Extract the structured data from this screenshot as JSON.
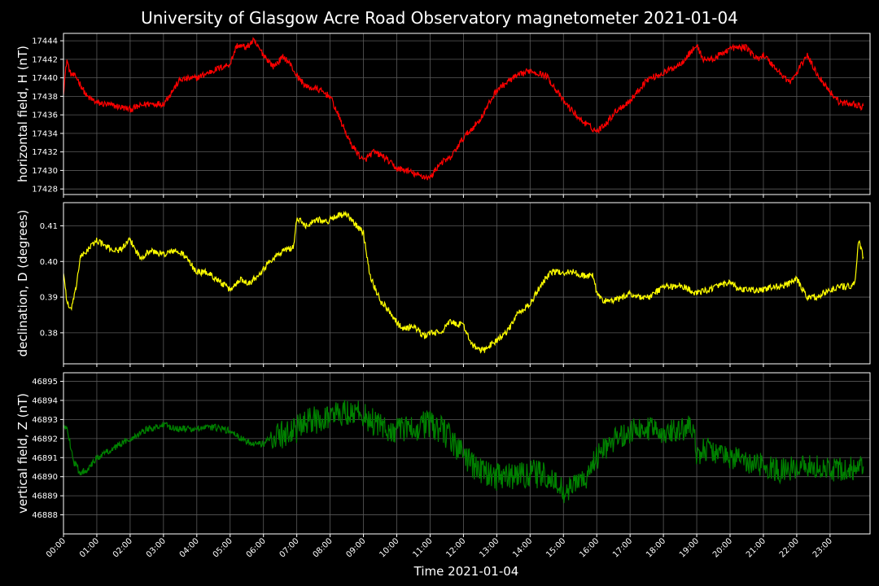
{
  "colors": {
    "background": "#000000",
    "text": "#ffffff",
    "grid": "#5a5a5a",
    "frame": "#ffffff"
  },
  "title": "University of Glasgow Acre Road Observatory magnetometer 2021-01-04",
  "xlabel": "Time 2021-01-04",
  "chart_data": [
    {
      "type": "line",
      "ylabel": "horizontal field, H (nT)",
      "color": "#ff0000",
      "grid": true,
      "ylim": [
        17427.4,
        17444.8
      ],
      "yticks": [
        17428,
        17430,
        17432,
        17434,
        17436,
        17438,
        17440,
        17442,
        17444
      ],
      "x": [
        0.0,
        0.1,
        0.2,
        0.4,
        0.7,
        1.0,
        1.5,
        2.0,
        2.5,
        3.0,
        3.5,
        4.0,
        4.5,
        5.0,
        5.2,
        5.5,
        5.7,
        6.0,
        6.3,
        6.6,
        6.8,
        7.0,
        7.3,
        7.6,
        8.0,
        8.3,
        8.6,
        9.0,
        9.3,
        9.6,
        10.0,
        10.3,
        10.6,
        11.0,
        11.3,
        11.6,
        12.0,
        12.5,
        13.0,
        13.5,
        14.0,
        14.5,
        15.0,
        15.5,
        16.0,
        16.3,
        16.6,
        17.0,
        17.5,
        18.0,
        18.5,
        19.0,
        19.2,
        19.5,
        20.0,
        20.5,
        20.8,
        21.0,
        21.5,
        21.8,
        22.0,
        22.3,
        22.6,
        23.0,
        23.3,
        23.7,
        24.0
      ],
      "y": [
        17438.5,
        17442.0,
        17440.5,
        17440.0,
        17438.0,
        17437.3,
        17437.0,
        17436.6,
        17437.2,
        17437.2,
        17439.8,
        17440.0,
        17440.8,
        17441.5,
        17443.5,
        17443.3,
        17444.0,
        17442.5,
        17441.2,
        17442.3,
        17441.5,
        17440.2,
        17439.0,
        17438.8,
        17438.0,
        17435.5,
        17433.0,
        17431.0,
        17432.0,
        17431.5,
        17430.2,
        17430.0,
        17429.5,
        17429.2,
        17430.8,
        17431.3,
        17433.5,
        17435.5,
        17438.7,
        17440.0,
        17440.8,
        17440.2,
        17437.5,
        17435.5,
        17434.2,
        17435.2,
        17436.5,
        17437.5,
        17439.8,
        17440.5,
        17441.5,
        17443.5,
        17442.0,
        17442.0,
        17443.2,
        17443.3,
        17442.0,
        17442.5,
        17440.5,
        17439.5,
        17440.5,
        17442.5,
        17440.5,
        17438.5,
        17437.3,
        17437.2,
        17436.8
      ]
    },
    {
      "type": "line",
      "ylabel": "declination, D (degrees)",
      "color": "#ffff00",
      "grid": true,
      "ylim": [
        0.3713,
        0.4165
      ],
      "yticks": [
        0.38,
        0.39,
        0.4,
        0.41
      ],
      "x": [
        0.0,
        0.1,
        0.2,
        0.35,
        0.5,
        0.8,
        1.0,
        1.3,
        1.6,
        1.8,
        2.0,
        2.3,
        2.6,
        3.0,
        3.3,
        3.6,
        4.0,
        4.3,
        4.6,
        5.0,
        5.3,
        5.6,
        6.0,
        6.3,
        6.6,
        6.9,
        7.0,
        7.3,
        7.6,
        7.9,
        8.2,
        8.5,
        8.8,
        9.0,
        9.2,
        9.5,
        9.8,
        10.0,
        10.2,
        10.5,
        10.8,
        11.0,
        11.3,
        11.6,
        12.0,
        12.3,
        12.6,
        13.0,
        13.3,
        13.6,
        14.0,
        14.3,
        14.6,
        15.0,
        15.3,
        15.6,
        15.9,
        16.0,
        16.2,
        16.5,
        16.8,
        17.0,
        17.3,
        17.6,
        18.0,
        18.3,
        18.6,
        19.0,
        19.3,
        19.6,
        20.0,
        20.3,
        20.6,
        21.0,
        21.3,
        21.6,
        22.0,
        22.3,
        22.6,
        23.0,
        23.3,
        23.6,
        23.75,
        23.85,
        24.0
      ],
      "y": [
        0.397,
        0.389,
        0.386,
        0.391,
        0.401,
        0.404,
        0.406,
        0.404,
        0.403,
        0.404,
        0.406,
        0.401,
        0.403,
        0.402,
        0.403,
        0.402,
        0.397,
        0.397,
        0.395,
        0.392,
        0.395,
        0.394,
        0.398,
        0.401,
        0.403,
        0.404,
        0.412,
        0.41,
        0.412,
        0.411,
        0.413,
        0.413,
        0.41,
        0.408,
        0.396,
        0.389,
        0.386,
        0.383,
        0.381,
        0.382,
        0.379,
        0.38,
        0.38,
        0.383,
        0.382,
        0.376,
        0.375,
        0.378,
        0.38,
        0.385,
        0.388,
        0.393,
        0.397,
        0.397,
        0.397,
        0.396,
        0.396,
        0.391,
        0.389,
        0.389,
        0.39,
        0.391,
        0.39,
        0.39,
        0.393,
        0.393,
        0.393,
        0.391,
        0.392,
        0.393,
        0.394,
        0.392,
        0.392,
        0.392,
        0.393,
        0.393,
        0.395,
        0.39,
        0.39,
        0.392,
        0.393,
        0.393,
        0.394,
        0.406,
        0.401
      ]
    },
    {
      "type": "line",
      "ylabel": "vertical field, Z (nT)",
      "color": "#008000",
      "grid": true,
      "ylim": [
        46887.0,
        46895.45
      ],
      "yticks": [
        46888,
        46889,
        46890,
        46891,
        46892,
        46893,
        46894,
        46895
      ],
      "x": [
        0.0,
        0.1,
        0.3,
        0.5,
        0.8,
        1.0,
        1.5,
        2.0,
        2.5,
        3.0,
        3.5,
        4.0,
        4.5,
        5.0,
        5.3,
        5.6,
        6.0,
        6.3,
        6.6,
        7.0,
        7.3,
        7.6,
        8.0,
        8.5,
        9.0,
        9.3,
        9.6,
        10.0,
        10.3,
        10.6,
        11.0,
        11.3,
        11.6,
        12.0,
        12.3,
        12.6,
        13.0,
        13.5,
        14.0,
        14.5,
        15.0,
        15.3,
        15.6,
        16.0,
        16.3,
        16.6,
        17.0,
        17.5,
        18.0,
        18.5,
        18.9,
        19.0,
        19.3,
        19.6,
        20.0,
        20.5,
        21.0,
        21.5,
        22.0,
        22.5,
        23.0,
        23.5,
        24.0
      ],
      "y": [
        46892.5,
        46892.7,
        46890.8,
        46890.2,
        46890.5,
        46891.0,
        46891.5,
        46892.0,
        46892.5,
        46892.7,
        46892.5,
        46892.5,
        46892.6,
        46892.4,
        46892.0,
        46891.8,
        46891.7,
        46892.2,
        46892.2,
        46892.5,
        46892.8,
        46893.0,
        46893.2,
        46893.4,
        46893.3,
        46892.8,
        46892.5,
        46892.4,
        46892.5,
        46892.6,
        46892.8,
        46892.5,
        46892.0,
        46891.2,
        46890.6,
        46890.2,
        46890.0,
        46890.0,
        46890.2,
        46890.0,
        46889.2,
        46889.5,
        46889.8,
        46891.0,
        46891.6,
        46892.0,
        46892.4,
        46892.5,
        46892.4,
        46892.5,
        46892.6,
        46891.2,
        46891.5,
        46891.2,
        46891.0,
        46890.8,
        46890.6,
        46890.3,
        46890.5,
        46890.6,
        46890.3,
        46890.4,
        46890.5
      ]
    }
  ],
  "x_axis": {
    "xlim": [
      0,
      24.2
    ],
    "ticks": [
      0,
      1,
      2,
      3,
      4,
      5,
      6,
      7,
      8,
      9,
      10,
      11,
      12,
      13,
      14,
      15,
      16,
      17,
      18,
      19,
      20,
      21,
      22,
      23
    ],
    "tick_labels": [
      "00:00",
      "01:00",
      "02:00",
      "03:00",
      "04:00",
      "05:00",
      "06:00",
      "07:00",
      "08:00",
      "09:00",
      "10:00",
      "11:00",
      "12:00",
      "13:00",
      "14:00",
      "15:00",
      "16:00",
      "17:00",
      "18:00",
      "19:00",
      "20:00",
      "21:00",
      "22:00",
      "23:00"
    ]
  }
}
